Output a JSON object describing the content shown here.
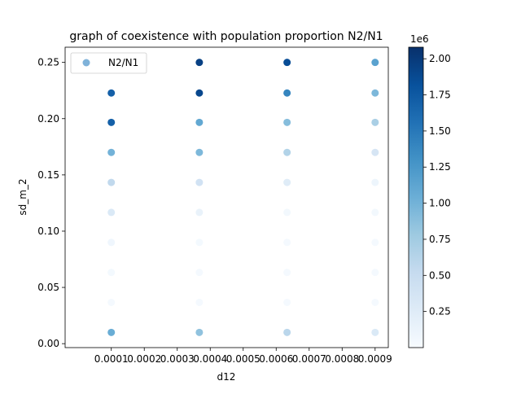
{
  "chart_data": {
    "type": "scatter",
    "title": "graph of coexistence with population proportion N2/N1",
    "xlabel": "d12",
    "ylabel": "sd_m_2",
    "xlim": [
      -4e-05,
      0.00094
    ],
    "ylim": [
      -0.0035,
      0.2635
    ],
    "x_ticks": [
      0.0001,
      0.0002,
      0.0003,
      0.0004,
      0.0005,
      0.0006,
      0.0007,
      0.0008,
      0.0009
    ],
    "x_tick_labels": [
      "0.0001",
      "0.0002",
      "0.0003",
      "0.0004",
      "0.0005",
      "0.0006",
      "0.0007",
      "0.0008",
      "0.0009"
    ],
    "y_ticks": [
      0.0,
      0.05,
      0.1,
      0.15,
      0.2,
      0.25
    ],
    "y_tick_labels": [
      "0.00",
      "0.05",
      "0.10",
      "0.15",
      "0.20",
      "0.25"
    ],
    "legend": {
      "label": "N2/N1",
      "position": "top-left",
      "marker_color": "#7fb2d9"
    },
    "grid": false,
    "colorbar": {
      "colormap": "Blues",
      "range": [
        0,
        2080000
      ],
      "ticks": [
        250000,
        500000,
        750000,
        1000000,
        1250000,
        1500000,
        1750000,
        2000000
      ],
      "tick_labels": [
        "0.25",
        "0.50",
        "0.75",
        "1.00",
        "1.25",
        "1.50",
        "1.75",
        "2.00"
      ],
      "offset_label": "1e6"
    },
    "x": [
      0.0001,
      0.000367,
      0.000633,
      0.0009
    ],
    "y": [
      0.25,
      0.2228,
      0.1967,
      0.17,
      0.1433,
      0.1167,
      0.09,
      0.0633,
      0.0367,
      0.01
    ],
    "values": [
      [
        300000,
        1950000,
        1850000,
        1150000
      ],
      [
        1700000,
        1900000,
        1400000,
        950000
      ],
      [
        1700000,
        1100000,
        900000,
        700000
      ],
      [
        1000000,
        950000,
        650000,
        350000
      ],
      [
        550000,
        400000,
        250000,
        100000
      ],
      [
        300000,
        150000,
        50000,
        50000
      ],
      [
        80000,
        40000,
        30000,
        30000
      ],
      [
        40000,
        30000,
        30000,
        30000
      ],
      [
        30000,
        30000,
        30000,
        30000
      ],
      [
        1050000,
        850000,
        600000,
        300000
      ]
    ]
  }
}
